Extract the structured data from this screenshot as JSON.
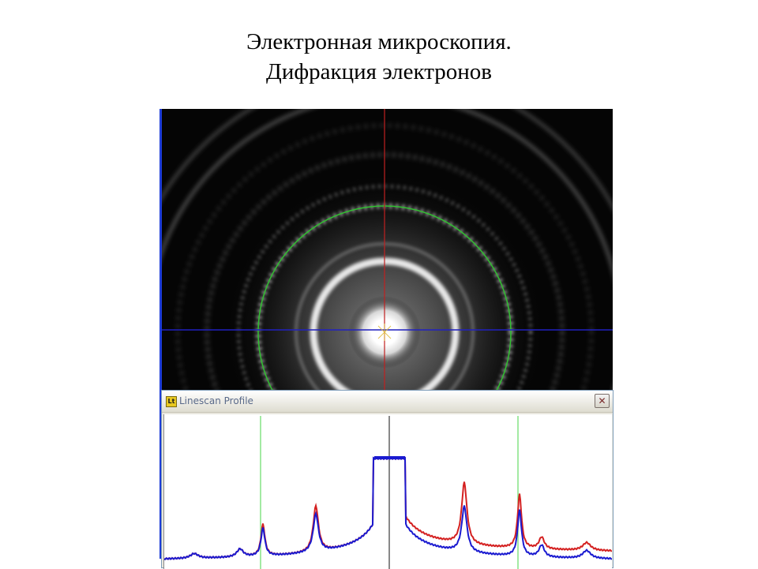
{
  "slide": {
    "title_line1": "Электронная микроскопия.",
    "title_line2": "Дифракция электронов"
  },
  "linescan_window": {
    "title": "Linescan Profile",
    "close_glyph": "✕",
    "icon_text": "Lt"
  },
  "colors": {
    "red_profile": "#d42020",
    "blue_profile": "#1a1ad0",
    "marker_green": "#66dd66",
    "crosshair_vertical": "#c02020",
    "crosshair_horizontal": "#2020c0",
    "fit_circle": "#30c030"
  }
}
